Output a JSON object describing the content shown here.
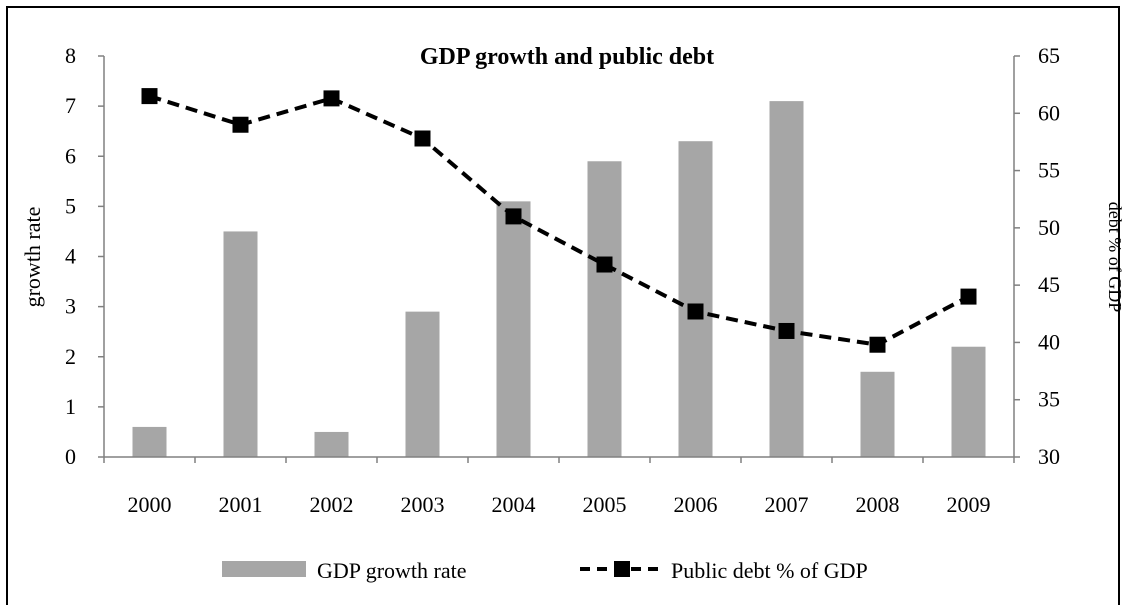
{
  "chart_data": {
    "type": "bar+line",
    "title": "GDP growth and public debt",
    "categories": [
      "2000",
      "2001",
      "2002",
      "2003",
      "2004",
      "2005",
      "2006",
      "2007",
      "2008",
      "2009"
    ],
    "series": [
      {
        "name": "GDP growth rate",
        "type": "bar",
        "axis": "left",
        "color": "#a6a6a6",
        "values": [
          0.6,
          4.5,
          0.5,
          2.9,
          5.1,
          5.9,
          6.3,
          7.1,
          1.7,
          2.2
        ]
      },
      {
        "name": "Public debt % of GDP",
        "type": "line",
        "axis": "right",
        "color": "#000000",
        "line_style": "dashed",
        "marker": "square",
        "values": [
          61.5,
          59.0,
          61.3,
          57.8,
          51.0,
          46.8,
          42.7,
          41.0,
          39.8,
          44.0
        ]
      }
    ],
    "ylabel": "growth rate",
    "ylabel_right": "debt % of GDP",
    "ylim": [
      0,
      8
    ],
    "ylim_right": [
      30,
      65
    ],
    "yticks": [
      "0",
      "1",
      "2",
      "3",
      "4",
      "5",
      "6",
      "7",
      "8"
    ],
    "yticks_right": [
      "30",
      "35",
      "40",
      "45",
      "50",
      "55",
      "60",
      "65"
    ],
    "grid": false,
    "legend_position": "bottom"
  }
}
